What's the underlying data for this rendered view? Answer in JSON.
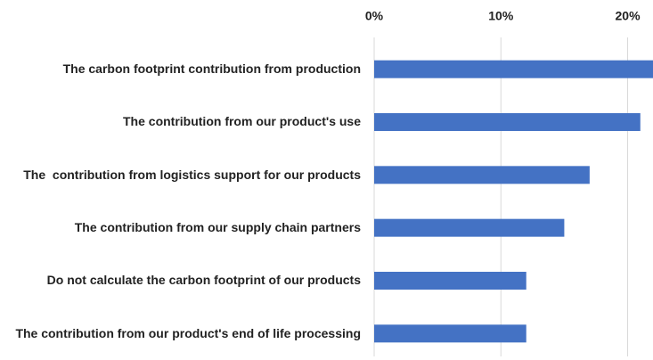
{
  "chart_data": {
    "type": "bar",
    "orientation": "horizontal",
    "categories": [
      "The carbon footprint contribution from production",
      "The contribution from our product's use",
      "The  contribution from logistics support for our products",
      "The contribution from our supply chain partners",
      "Do not calculate the carbon footprint of our products",
      "The contribution from our product's end of life processing"
    ],
    "values": [
      22,
      21,
      17,
      15,
      12,
      12
    ],
    "color": "#4472c4",
    "xlim": [
      0,
      22
    ],
    "xticks": [
      {
        "value": 0,
        "label": "0%"
      },
      {
        "value": 10,
        "label": "10%"
      },
      {
        "value": 20,
        "label": "20%"
      }
    ],
    "grid": true
  }
}
